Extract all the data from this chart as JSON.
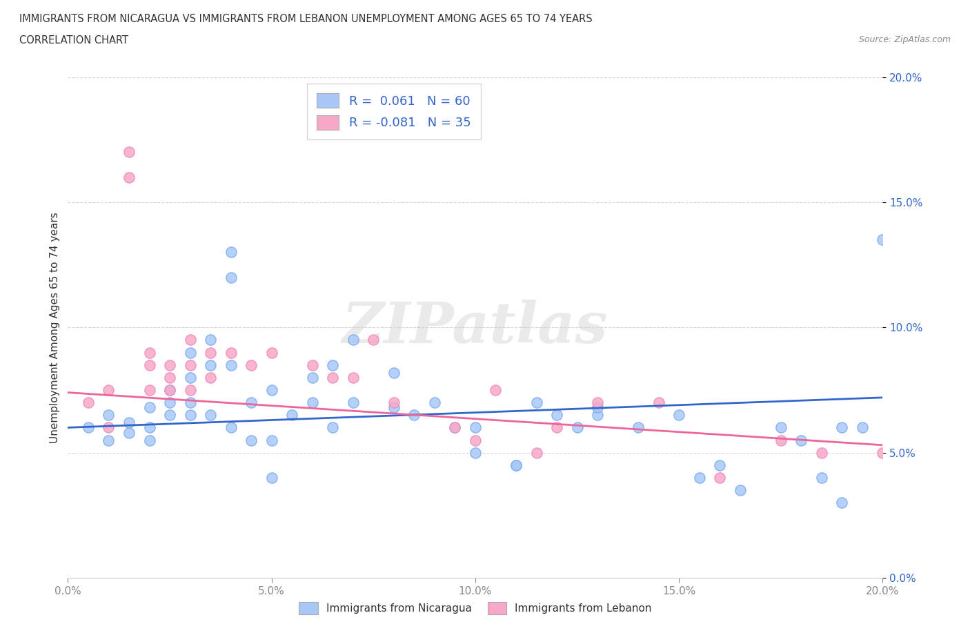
{
  "title_line1": "IMMIGRANTS FROM NICARAGUA VS IMMIGRANTS FROM LEBANON UNEMPLOYMENT AMONG AGES 65 TO 74 YEARS",
  "title_line2": "CORRELATION CHART",
  "source": "Source: ZipAtlas.com",
  "ylabel": "Unemployment Among Ages 65 to 74 years",
  "legend_label1": "Immigrants from Nicaragua",
  "legend_label2": "Immigrants from Lebanon",
  "R1": 0.061,
  "N1": 60,
  "R2": -0.081,
  "N2": 35,
  "color1": "#a8c8f8",
  "color2": "#f8a8c8",
  "edge1": "#7aabee",
  "edge2": "#ee88bb",
  "trendline_color1": "#3366cc",
  "trendline_color2": "#ee6699",
  "xlim": [
    0.0,
    0.2
  ],
  "ylim": [
    0.0,
    0.2
  ],
  "watermark": "ZIPatlas",
  "nicaragua_x": [
    0.005,
    0.01,
    0.01,
    0.015,
    0.015,
    0.02,
    0.02,
    0.02,
    0.025,
    0.025,
    0.025,
    0.03,
    0.03,
    0.03,
    0.03,
    0.035,
    0.035,
    0.035,
    0.04,
    0.04,
    0.04,
    0.04,
    0.045,
    0.045,
    0.05,
    0.05,
    0.05,
    0.055,
    0.06,
    0.06,
    0.065,
    0.065,
    0.07,
    0.07,
    0.08,
    0.08,
    0.085,
    0.09,
    0.095,
    0.1,
    0.1,
    0.11,
    0.115,
    0.12,
    0.125,
    0.13,
    0.14,
    0.15,
    0.155,
    0.16,
    0.165,
    0.175,
    0.18,
    0.185,
    0.19,
    0.195,
    0.11,
    0.13,
    0.19,
    0.2
  ],
  "nicaragua_y": [
    0.06,
    0.055,
    0.065,
    0.062,
    0.058,
    0.06,
    0.068,
    0.055,
    0.075,
    0.07,
    0.065,
    0.09,
    0.08,
    0.07,
    0.065,
    0.095,
    0.085,
    0.065,
    0.13,
    0.12,
    0.085,
    0.06,
    0.07,
    0.055,
    0.055,
    0.04,
    0.075,
    0.065,
    0.08,
    0.07,
    0.085,
    0.06,
    0.095,
    0.07,
    0.082,
    0.068,
    0.065,
    0.07,
    0.06,
    0.06,
    0.05,
    0.045,
    0.07,
    0.065,
    0.06,
    0.065,
    0.06,
    0.065,
    0.04,
    0.045,
    0.035,
    0.06,
    0.055,
    0.04,
    0.03,
    0.06,
    0.045,
    0.068,
    0.06,
    0.135
  ],
  "lebanon_x": [
    0.005,
    0.01,
    0.01,
    0.015,
    0.015,
    0.02,
    0.02,
    0.02,
    0.025,
    0.025,
    0.025,
    0.03,
    0.03,
    0.03,
    0.035,
    0.035,
    0.04,
    0.045,
    0.05,
    0.06,
    0.065,
    0.07,
    0.075,
    0.08,
    0.095,
    0.1,
    0.105,
    0.115,
    0.12,
    0.13,
    0.145,
    0.16,
    0.175,
    0.185,
    0.2
  ],
  "lebanon_y": [
    0.07,
    0.075,
    0.06,
    0.17,
    0.16,
    0.09,
    0.085,
    0.075,
    0.085,
    0.08,
    0.075,
    0.075,
    0.095,
    0.085,
    0.09,
    0.08,
    0.09,
    0.085,
    0.09,
    0.085,
    0.08,
    0.08,
    0.095,
    0.07,
    0.06,
    0.055,
    0.075,
    0.05,
    0.06,
    0.07,
    0.07,
    0.04,
    0.055,
    0.05,
    0.05
  ],
  "nic_trend_x0": 0.0,
  "nic_trend_y0": 0.06,
  "nic_trend_x1": 0.2,
  "nic_trend_y1": 0.072,
  "leb_trend_x0": 0.0,
  "leb_trend_y0": 0.074,
  "leb_trend_x1": 0.2,
  "leb_trend_y1": 0.053
}
